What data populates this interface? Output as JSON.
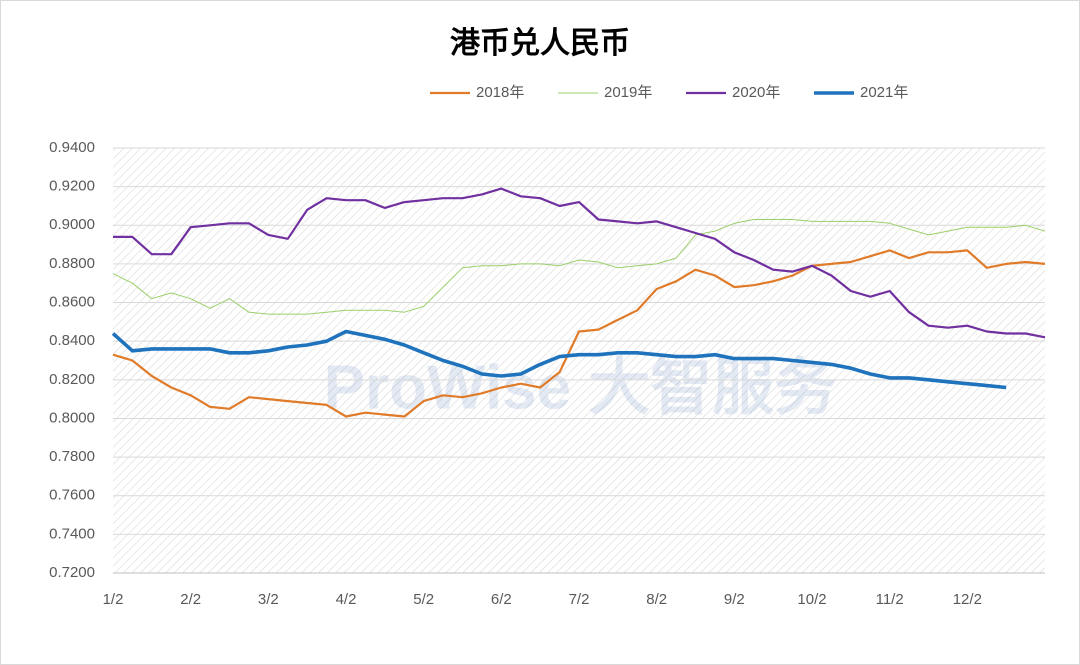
{
  "chart_data": {
    "type": "line",
    "title": "港币兑人民币",
    "watermark": "ProWise 大智服务",
    "categories": [
      "1/2",
      null,
      null,
      null,
      "2/2",
      null,
      null,
      null,
      "3/2",
      null,
      null,
      null,
      "4/2",
      null,
      null,
      null,
      "5/2",
      null,
      null,
      null,
      "6/2",
      null,
      null,
      null,
      "7/2",
      null,
      null,
      null,
      "8/2",
      null,
      null,
      null,
      "9/2",
      null,
      null,
      null,
      "10/2",
      null,
      null,
      null,
      "11/2",
      null,
      null,
      null,
      "12/2",
      null,
      null,
      null,
      null
    ],
    "ylim": [
      0.72,
      0.94
    ],
    "yticks": [
      {
        "value": 0.72,
        "label": "0.7200"
      },
      {
        "value": 0.74,
        "label": "0.7400"
      },
      {
        "value": 0.76,
        "label": "0.7600"
      },
      {
        "value": 0.78,
        "label": "0.7800"
      },
      {
        "value": 0.8,
        "label": "0.8000"
      },
      {
        "value": 0.82,
        "label": "0.8200"
      },
      {
        "value": 0.84,
        "label": "0.8400"
      },
      {
        "value": 0.86,
        "label": "0.8600"
      },
      {
        "value": 0.88,
        "label": "0.8800"
      },
      {
        "value": 0.9,
        "label": "0.9000"
      },
      {
        "value": 0.92,
        "label": "0.9200"
      },
      {
        "value": 0.94,
        "label": "0.9400"
      }
    ],
    "grid": true,
    "legend": "top",
    "series": [
      {
        "name": "2018年",
        "color": "#e07b2a",
        "linewidth": 2.2,
        "values": [
          0.833,
          0.83,
          0.822,
          0.816,
          0.812,
          0.806,
          0.805,
          0.811,
          0.81,
          0.809,
          0.808,
          0.807,
          0.801,
          0.803,
          0.802,
          0.801,
          0.809,
          0.812,
          0.811,
          0.813,
          0.816,
          0.818,
          0.816,
          0.824,
          0.845,
          0.846,
          0.851,
          0.856,
          0.867,
          0.871,
          0.877,
          0.874,
          0.868,
          0.869,
          0.871,
          0.874,
          0.879,
          0.88,
          0.881,
          0.884,
          0.887,
          0.883,
          0.886,
          0.886,
          0.887,
          0.878,
          0.88,
          0.881,
          0.88
        ]
      },
      {
        "name": "2019年",
        "color": "#9bcf6b",
        "linewidth": 1,
        "values": [
          0.875,
          0.87,
          0.862,
          0.865,
          0.862,
          0.857,
          0.862,
          0.855,
          0.854,
          0.854,
          0.854,
          0.855,
          0.856,
          0.856,
          0.856,
          0.855,
          0.858,
          0.868,
          0.878,
          0.879,
          0.879,
          0.88,
          0.88,
          0.879,
          0.882,
          0.881,
          0.878,
          0.879,
          0.88,
          0.883,
          0.895,
          0.897,
          0.901,
          0.903,
          0.903,
          0.903,
          0.902,
          0.902,
          0.902,
          0.902,
          0.901,
          0.898,
          0.895,
          0.897,
          0.899,
          0.899,
          0.899,
          0.9,
          0.897
        ]
      },
      {
        "name": "2020年",
        "color": "#7030a0",
        "linewidth": 2.2,
        "values": [
          0.894,
          0.894,
          0.885,
          0.885,
          0.899,
          0.9,
          0.901,
          0.901,
          0.895,
          0.893,
          0.908,
          0.914,
          0.913,
          0.913,
          0.909,
          0.912,
          0.913,
          0.914,
          0.914,
          0.916,
          0.919,
          0.915,
          0.914,
          0.91,
          0.912,
          0.903,
          0.902,
          0.901,
          0.902,
          0.899,
          0.896,
          0.893,
          0.886,
          0.882,
          0.877,
          0.876,
          0.879,
          0.874,
          0.866,
          0.863,
          0.866,
          0.855,
          0.848,
          0.847,
          0.848,
          0.845,
          0.844,
          0.844,
          0.842
        ]
      },
      {
        "name": "2021年",
        "color": "#1f73bd",
        "linewidth": 3.6,
        "values": [
          0.844,
          0.835,
          0.836,
          0.836,
          0.836,
          0.836,
          0.834,
          0.834,
          0.835,
          0.837,
          0.838,
          0.84,
          0.845,
          0.843,
          0.841,
          0.838,
          0.834,
          0.83,
          0.827,
          0.823,
          0.822,
          0.823,
          0.828,
          0.832,
          0.833,
          0.833,
          0.834,
          0.834,
          0.833,
          0.832,
          0.832,
          0.833,
          0.831,
          0.831,
          0.831,
          0.83,
          0.829,
          0.828,
          0.826,
          0.823,
          0.821,
          0.821,
          0.82,
          0.819,
          0.818,
          0.817,
          0.816,
          null,
          null
        ]
      }
    ]
  }
}
